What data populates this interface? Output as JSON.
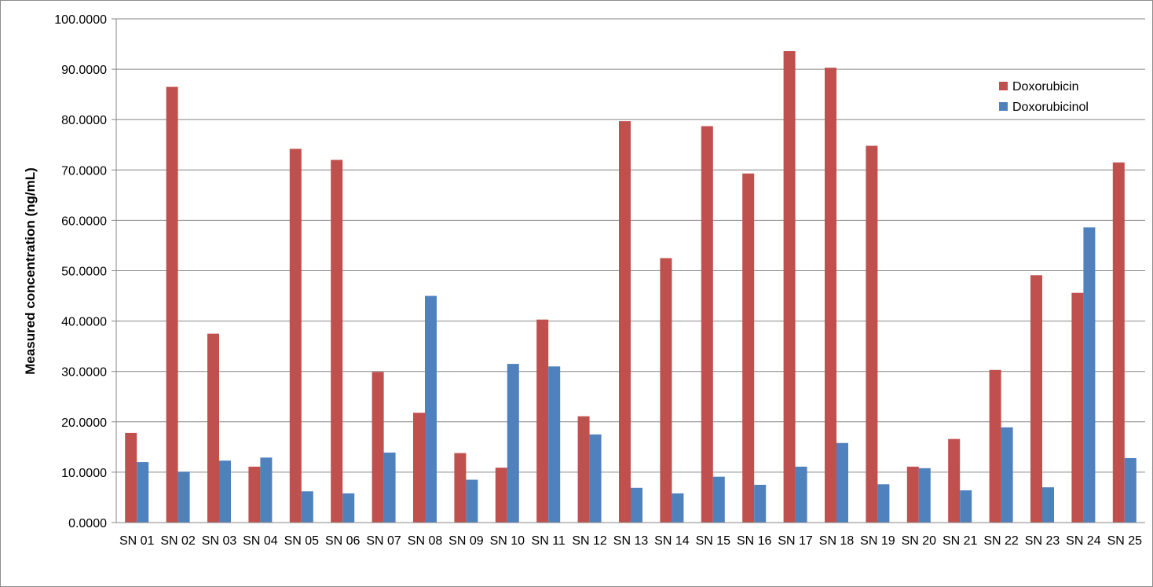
{
  "chart_data": {
    "type": "bar",
    "title": "",
    "xlabel": "",
    "ylabel": "Measured concentration (ng/mL)",
    "ylim": [
      0,
      100
    ],
    "y_ticks": [
      "0.0000",
      "10.0000",
      "20.0000",
      "30.0000",
      "40.0000",
      "50.0000",
      "60.0000",
      "70.0000",
      "80.0000",
      "90.0000",
      "100.0000"
    ],
    "grid": true,
    "legend_position": "top-right",
    "categories": [
      "SN 01",
      "SN 02",
      "SN 03",
      "SN 04",
      "SN 05",
      "SN 06",
      "SN 07",
      "SN 08",
      "SN 09",
      "SN 10",
      "SN 11",
      "SN 12",
      "SN 13",
      "SN 14",
      "SN 15",
      "SN 16",
      "SN 17",
      "SN 18",
      "SN 19",
      "SN 20",
      "SN 21",
      "SN 22",
      "SN 23",
      "SN 24",
      "SN 25"
    ],
    "series": [
      {
        "name": "Doxorubicin",
        "color": "#C0504D",
        "values": [
          17.8,
          86.5,
          37.5,
          11.1,
          74.2,
          72.0,
          29.9,
          21.8,
          13.8,
          10.9,
          40.3,
          21.1,
          79.7,
          52.5,
          78.7,
          69.3,
          93.6,
          90.3,
          74.8,
          11.1,
          16.6,
          30.3,
          49.1,
          45.6,
          71.5
        ]
      },
      {
        "name": "Doxorubicinol",
        "color": "#4F81BD",
        "values": [
          12.0,
          10.1,
          12.3,
          12.9,
          6.2,
          5.8,
          13.9,
          45.0,
          8.5,
          31.5,
          31.0,
          17.5,
          6.9,
          5.8,
          9.1,
          7.5,
          11.1,
          15.8,
          7.6,
          10.8,
          6.4,
          18.9,
          7.0,
          58.6,
          12.8
        ]
      }
    ]
  }
}
